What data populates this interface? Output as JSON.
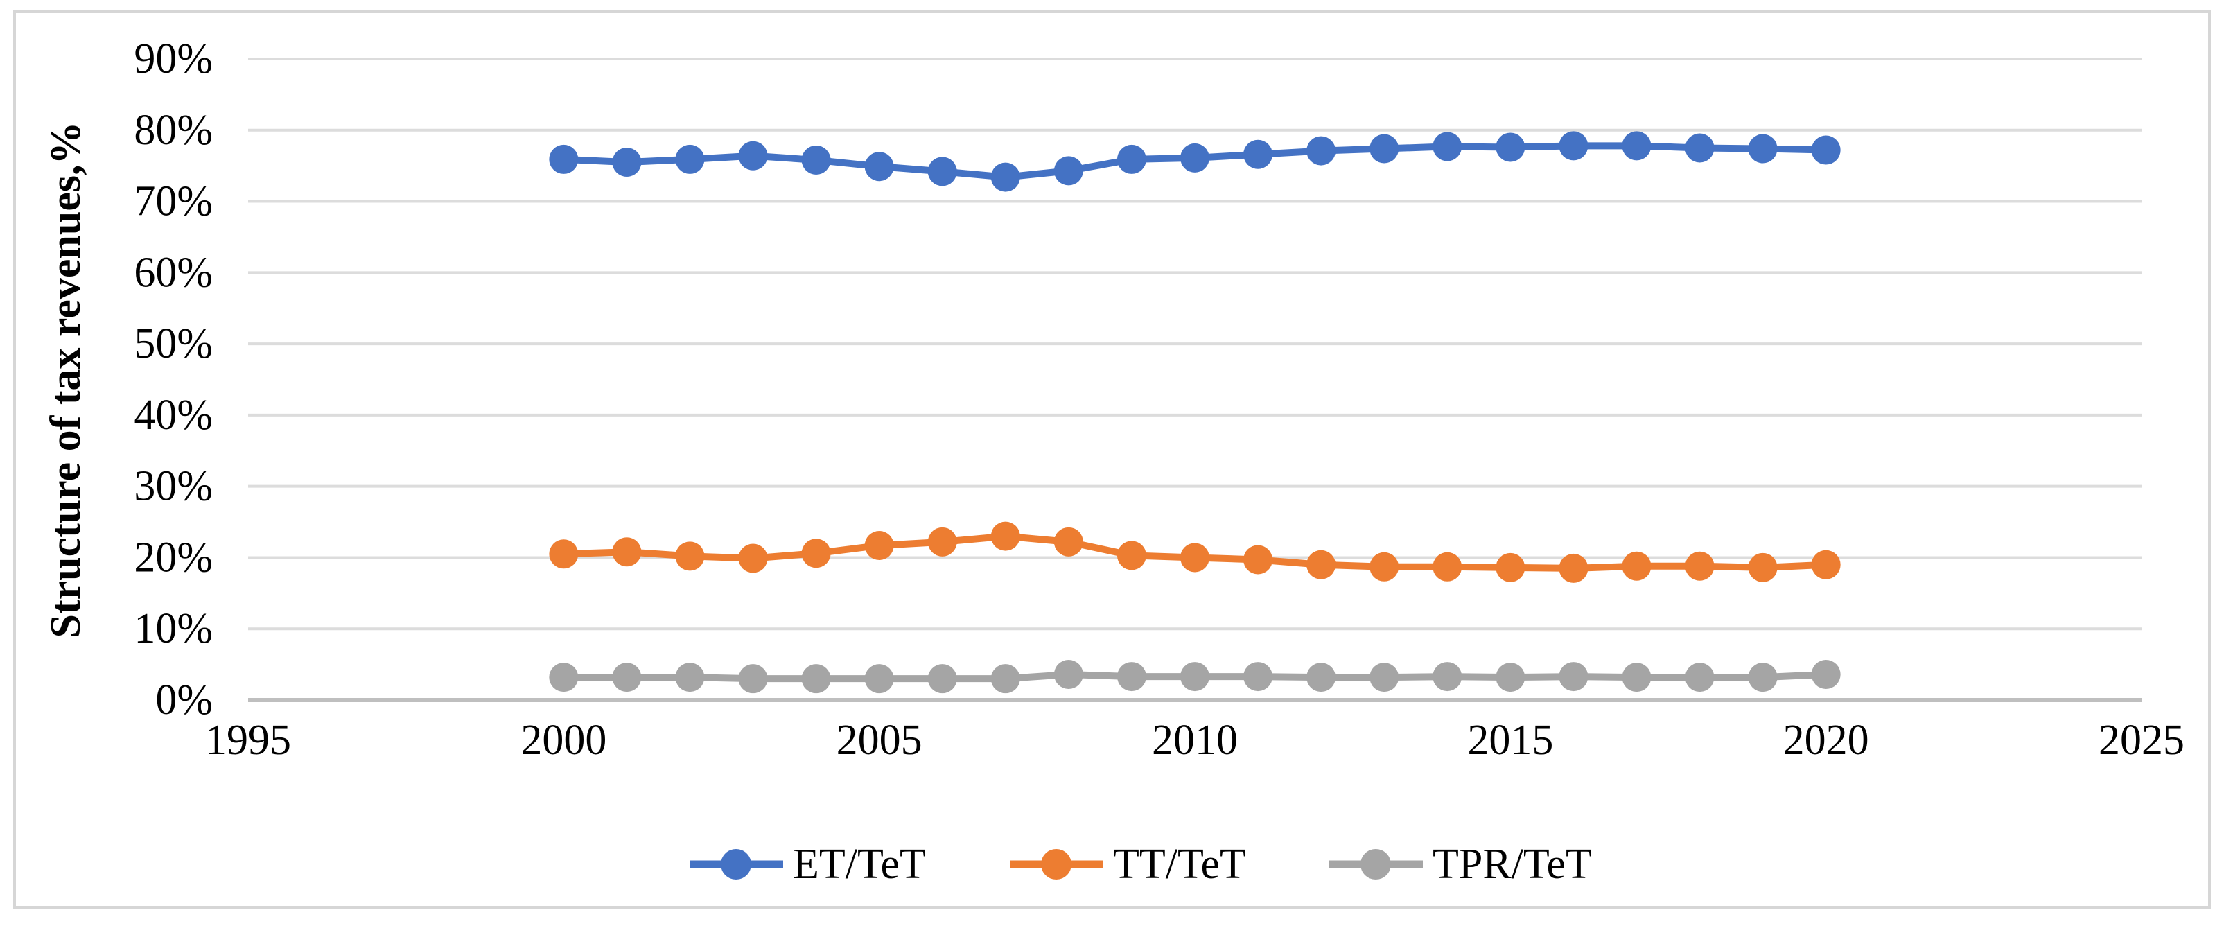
{
  "figure": {
    "background": "#ffffff",
    "border_color": "#d6d6d6"
  },
  "chart_data": {
    "type": "line",
    "title": "",
    "xlabel": "",
    "ylabel": "Structure of tax revenues,%",
    "xlim": [
      1995,
      2025
    ],
    "ylim": [
      0,
      90
    ],
    "grid": "horizontal-only",
    "gridline_color": "#dcdcdc",
    "axis_line_color": "#bfbfbf",
    "legend_position": "bottom-center",
    "x_ticks": [
      "1995",
      "2000",
      "2005",
      "2010",
      "2015",
      "2020",
      "2025"
    ],
    "x_tick_values": [
      1995,
      2000,
      2005,
      2010,
      2015,
      2020,
      2025
    ],
    "y_ticks": [
      "0%",
      "10%",
      "20%",
      "30%",
      "40%",
      "50%",
      "60%",
      "70%",
      "80%",
      "90%"
    ],
    "y_tick_values": [
      0,
      10,
      20,
      30,
      40,
      50,
      60,
      70,
      80,
      90
    ],
    "x": [
      2000,
      2001,
      2002,
      2003,
      2004,
      2005,
      2006,
      2007,
      2008,
      2009,
      2010,
      2011,
      2012,
      2013,
      2014,
      2015,
      2016,
      2017,
      2018,
      2019,
      2020
    ],
    "series": [
      {
        "name": "ET/TeT",
        "color": "#4472C4",
        "values": [
          75.9,
          75.5,
          75.9,
          76.4,
          75.8,
          74.9,
          74.2,
          73.4,
          74.3,
          75.9,
          76.1,
          76.6,
          77.1,
          77.4,
          77.7,
          77.6,
          77.8,
          77.8,
          77.5,
          77.4,
          77.2
        ]
      },
      {
        "name": "TT/TeT",
        "color": "#ED7D31",
        "values": [
          20.5,
          20.8,
          20.2,
          19.9,
          20.6,
          21.7,
          22.2,
          23.0,
          22.2,
          20.3,
          20.0,
          19.7,
          19.0,
          18.7,
          18.7,
          18.6,
          18.5,
          18.8,
          18.8,
          18.6,
          19.0
        ]
      },
      {
        "name": "TPR/TeT",
        "color": "#A5A5A5",
        "values": [
          3.2,
          3.2,
          3.2,
          3.0,
          3.0,
          3.0,
          3.0,
          3.0,
          3.6,
          3.3,
          3.3,
          3.3,
          3.2,
          3.2,
          3.3,
          3.2,
          3.3,
          3.2,
          3.2,
          3.2,
          3.6
        ]
      }
    ]
  }
}
